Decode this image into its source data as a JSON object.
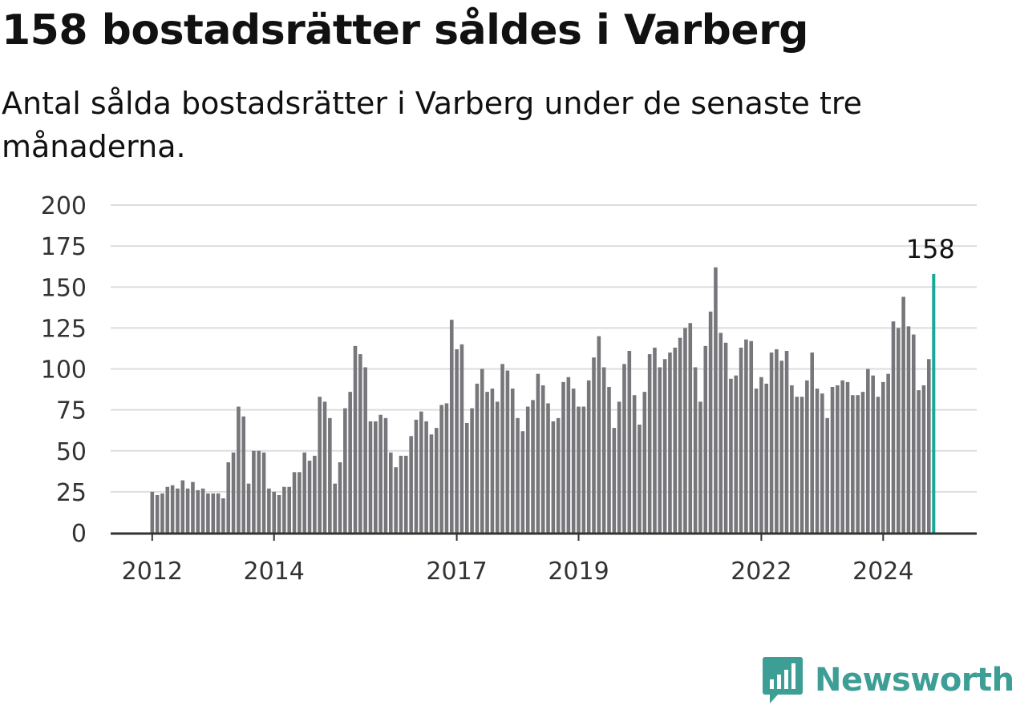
{
  "header": {
    "title": "158 bostadsrätter såldes i Varberg",
    "subtitle": "Antal sålda bostadsrätter i Varberg under de senaste tre månaderna."
  },
  "brand": {
    "name": "Newsworthy",
    "color": "#3d9e96",
    "icon": "bar-chart-speech-bubble-icon"
  },
  "colors": {
    "bar": "#77777b",
    "highlight": "#17a89a",
    "grid": "#dddddd",
    "axis": "#333333"
  },
  "chart_data": {
    "type": "bar",
    "title": "158 bostadsrätter såldes i Varberg",
    "subtitle": "Antal sålda bostadsrätter i Varberg under de senaste tre månaderna.",
    "xlabel": "",
    "ylabel": "",
    "ylim": [
      0,
      200
    ],
    "yticks": [
      0,
      25,
      50,
      75,
      100,
      125,
      150,
      175,
      200
    ],
    "xticks": [
      {
        "label": "2012",
        "index": 0
      },
      {
        "label": "2014",
        "index": 24
      },
      {
        "label": "2017",
        "index": 60
      },
      {
        "label": "2019",
        "index": 84
      },
      {
        "label": "2022",
        "index": 120
      },
      {
        "label": "2024",
        "index": 144
      }
    ],
    "grid": true,
    "start": "2012-01",
    "values": [
      25,
      23,
      24,
      28,
      29,
      27,
      32,
      27,
      31,
      26,
      27,
      24,
      24,
      24,
      21,
      43,
      49,
      77,
      71,
      30,
      50,
      50,
      49,
      27,
      25,
      23,
      28,
      28,
      37,
      37,
      49,
      44,
      47,
      83,
      80,
      70,
      30,
      43,
      76,
      86,
      114,
      109,
      101,
      68,
      68,
      72,
      70,
      49,
      40,
      47,
      47,
      59,
      69,
      74,
      68,
      60,
      64,
      78,
      79,
      130,
      112,
      115,
      67,
      76,
      91,
      100,
      86,
      88,
      80,
      103,
      99,
      88,
      70,
      62,
      77,
      81,
      97,
      90,
      79,
      68,
      70,
      92,
      95,
      88,
      77,
      77,
      93,
      107,
      120,
      101,
      89,
      64,
      80,
      103,
      111,
      84,
      66,
      86,
      109,
      113,
      101,
      106,
      110,
      113,
      119,
      125,
      128,
      101,
      80,
      114,
      135,
      162,
      122,
      116,
      94,
      96,
      113,
      118,
      117,
      88,
      95,
      91,
      110,
      112,
      105,
      111,
      90,
      83,
      83,
      93,
      110,
      88,
      85,
      70,
      89,
      90,
      93,
      92,
      84,
      84,
      86,
      100,
      96,
      83,
      92,
      97,
      129,
      125,
      144,
      126,
      121,
      87,
      90,
      106,
      158
    ],
    "highlight": {
      "index": 154,
      "value": 158,
      "label": "158"
    }
  }
}
